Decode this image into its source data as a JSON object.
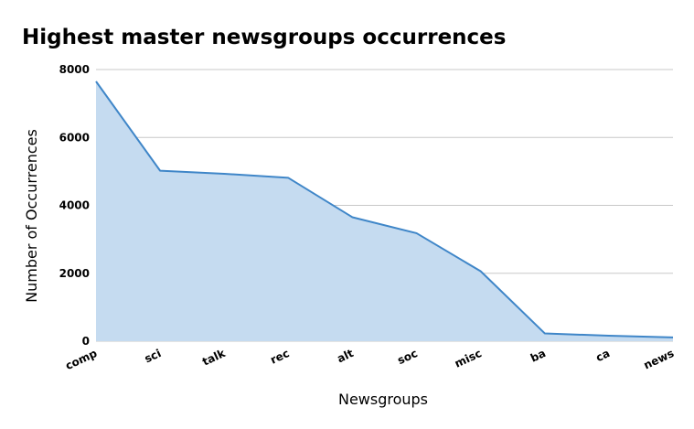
{
  "chart_data": {
    "type": "area",
    "title": "Highest master newsgroups occurrences",
    "xlabel": "Newsgroups",
    "ylabel": "Number of Occurrences",
    "categories": [
      "comp",
      "sci",
      "talk",
      "rec",
      "alt",
      "soc",
      "misc",
      "ba",
      "ca",
      "news"
    ],
    "series": [
      {
        "values": [
          7650,
          5020,
          4930,
          4810,
          3650,
          3180,
          2060,
          230,
          160,
          110
        ]
      }
    ],
    "ylim": [
      0,
      8000
    ],
    "yticks": [
      0,
      2000,
      4000,
      6000,
      8000
    ],
    "grid": true,
    "colors": {
      "line": "#3f86c8",
      "fill": "#c5dbf0",
      "grid": "#c8c8c8"
    }
  }
}
